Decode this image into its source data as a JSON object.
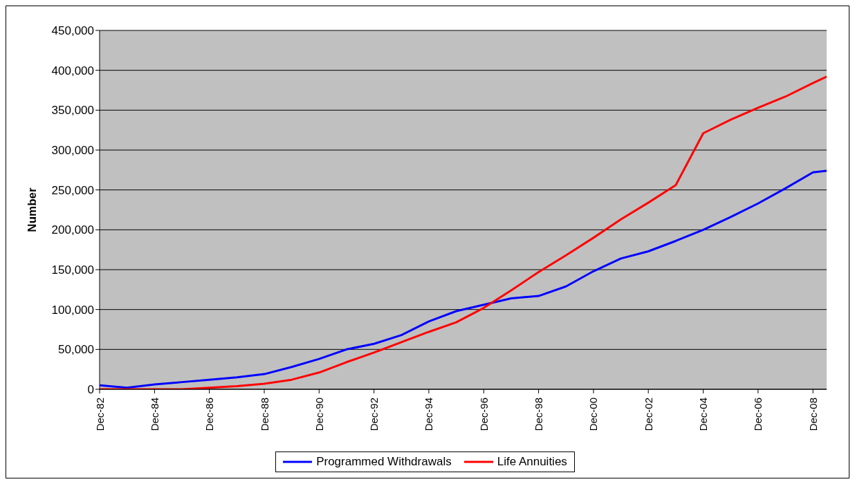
{
  "chart_data": {
    "type": "line",
    "ylabel": "Number",
    "x": [
      "1982-12",
      "1983-12",
      "1984-12",
      "1985-12",
      "1986-12",
      "1987-12",
      "1988-12",
      "1989-12",
      "1990-12",
      "1991-12",
      "1992-12",
      "1993-12",
      "1994-12",
      "1995-12",
      "1996-12",
      "1997-12",
      "1998-12",
      "1999-12",
      "2000-12",
      "2001-12",
      "2002-12",
      "2003-12",
      "2004-12",
      "2005-12",
      "2006-12",
      "2007-12",
      "2008-12",
      "2009-06"
    ],
    "series": [
      {
        "name": "Programmed Withdrawals",
        "color": "#0000ff",
        "values": [
          5000,
          2000,
          6000,
          9000,
          12000,
          15000,
          19000,
          28000,
          38000,
          50000,
          57000,
          68000,
          85000,
          98000,
          106000,
          114000,
          117000,
          129000,
          148000,
          164000,
          173000,
          186000,
          200000,
          216000,
          233000,
          252000,
          272000,
          274000
        ]
      },
      {
        "name": "Life Annuities",
        "color": "#ff0000",
        "values": [
          0,
          0,
          0,
          0,
          2000,
          4000,
          7000,
          12000,
          21000,
          34000,
          46000,
          59000,
          72000,
          84000,
          102000,
          124000,
          147000,
          168000,
          190000,
          213000,
          234000,
          256000,
          321000,
          338000,
          353000,
          367000,
          384000,
          392000
        ]
      }
    ],
    "xlim": [
      "1982-12",
      "2009-06"
    ],
    "xticks": [
      {
        "value": "1982-12",
        "label": "Dec-82"
      },
      {
        "value": "1984-12",
        "label": "Dec-84"
      },
      {
        "value": "1986-12",
        "label": "Dec-86"
      },
      {
        "value": "1988-12",
        "label": "Dec-88"
      },
      {
        "value": "1990-12",
        "label": "Dec-90"
      },
      {
        "value": "1992-12",
        "label": "Dec-92"
      },
      {
        "value": "1994-12",
        "label": "Dec-94"
      },
      {
        "value": "1996-12",
        "label": "Dec-96"
      },
      {
        "value": "1998-12",
        "label": "Dec-98"
      },
      {
        "value": "2000-12",
        "label": "Dec-00"
      },
      {
        "value": "2002-12",
        "label": "Dec-02"
      },
      {
        "value": "2004-12",
        "label": "Dec-04"
      },
      {
        "value": "2006-12",
        "label": "Dec-06"
      },
      {
        "value": "2008-12",
        "label": "Dec-08"
      }
    ],
    "ylim": [
      0,
      450000
    ],
    "yticks": [
      {
        "value": 0,
        "label": "0"
      },
      {
        "value": 50000,
        "label": "50,000"
      },
      {
        "value": 100000,
        "label": "100,000"
      },
      {
        "value": 150000,
        "label": "150,000"
      },
      {
        "value": 200000,
        "label": "200,000"
      },
      {
        "value": 250000,
        "label": "250,000"
      },
      {
        "value": 300000,
        "label": "300,000"
      },
      {
        "value": 350000,
        "label": "350,000"
      },
      {
        "value": 400000,
        "label": "400,000"
      },
      {
        "value": 450000,
        "label": "450,000"
      }
    ],
    "grid": "y",
    "legend": "bottom",
    "marker": "none",
    "line_style": "solid"
  }
}
